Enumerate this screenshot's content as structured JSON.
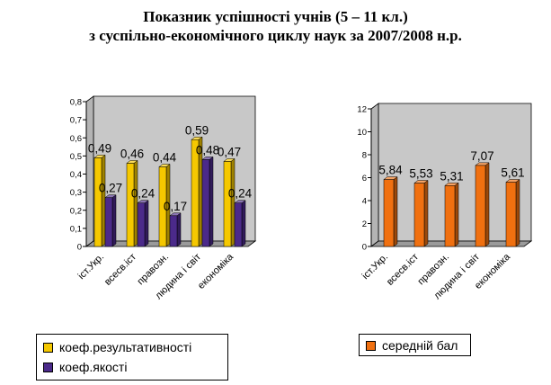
{
  "title": {
    "line1": "Показник успішності учнів (5 – 11 кл.)",
    "line2": "з суспільно-економічного циклу наук за 2007/2008 н.р."
  },
  "colors": {
    "series1": "#f5c800",
    "series2": "#4b2a8a",
    "series3": "#f07010",
    "wall": "#c8c8c8",
    "floor": "#9a9a9a"
  },
  "chart_data": [
    {
      "type": "bar",
      "categories": [
        "іст.Укр.",
        "всесв.іст",
        "правозн.",
        "людина і світ",
        "економіка"
      ],
      "series": [
        {
          "name": "коеф.результативності",
          "values": [
            0.49,
            0.46,
            0.44,
            0.59,
            0.47
          ],
          "labels": [
            "0,49",
            "0,46",
            "0,44",
            "0,59",
            "0,47"
          ]
        },
        {
          "name": "коеф.якості",
          "values": [
            0.27,
            0.24,
            0.17,
            0.48,
            0.24
          ],
          "labels": [
            "0,27",
            "0,24",
            "0,17",
            "0,48",
            "0,24"
          ]
        }
      ],
      "ylim": [
        0,
        0.8
      ],
      "yticks": [
        0,
        0.1,
        0.2,
        0.3,
        0.4,
        0.5,
        0.6,
        0.7,
        0.8
      ],
      "ytick_labels": [
        "0",
        "0,1",
        "0,2",
        "0,3",
        "0,4",
        "0,5",
        "0,6",
        "0,7",
        "0,8"
      ],
      "legend_position": "bottom-left",
      "grid": false
    },
    {
      "type": "bar",
      "categories": [
        "іст.Укр.",
        "всесв.іст",
        "правозн.",
        "людина і світ",
        "економіка"
      ],
      "series": [
        {
          "name": "середній бал",
          "values": [
            5.84,
            5.53,
            5.31,
            7.07,
            5.61
          ],
          "labels": [
            "5,84",
            "5,53",
            "5,31",
            "7,07",
            "5,61"
          ]
        }
      ],
      "ylim": [
        0,
        12
      ],
      "yticks": [
        0,
        2,
        4,
        6,
        8,
        10,
        12
      ],
      "ytick_labels": [
        "0",
        "2",
        "4",
        "6",
        "8",
        "10",
        "12"
      ],
      "legend_position": "bottom-left",
      "grid": false
    }
  ]
}
